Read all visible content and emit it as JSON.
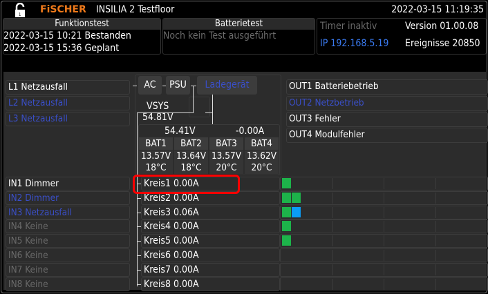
{
  "header": {
    "brand": "FiSCHER",
    "title": "INSILIA 2 Testfloor",
    "datetime": "2022-03-15 11:19:35",
    "lock_icon": "unlocked-padlock-icon",
    "brand_color": "#f07a1a"
  },
  "funktionstest": {
    "title": "Funktionstest",
    "lines": [
      "2022-03-15 10:21 Bestanden",
      "2022-03-15 15:36 Geplant"
    ]
  },
  "batterietest": {
    "title": "Batterietest",
    "status": "Noch kein Test ausgeführt"
  },
  "info": {
    "timer": "Timer inaktiv",
    "version": "Version 01.00.08",
    "ip": "IP 192.168.5.19",
    "events": "Ereignisse 20850"
  },
  "phases": [
    {
      "label": "L1 Netzausfall",
      "state": "white"
    },
    {
      "label": "L2 Netzausfall",
      "state": "blue"
    },
    {
      "label": "L3 Netzausfall",
      "state": "blue"
    }
  ],
  "power": {
    "ac": "AC",
    "psu": "PSU",
    "charger": "Ladegerät",
    "vsys_label": "VSYS",
    "vsys": "54.81V",
    "bat_voltage": "54.41V",
    "bat_current": "-0.00A",
    "batteries": [
      {
        "name": "BAT1",
        "voltage": "13.57V",
        "temp": "18°C"
      },
      {
        "name": "BAT2",
        "voltage": "13.64V",
        "temp": "18°C"
      },
      {
        "name": "BAT3",
        "voltage": "13.57V",
        "temp": "20°C"
      },
      {
        "name": "BAT4",
        "voltage": "13.62V",
        "temp": "20°C"
      }
    ]
  },
  "outputs": [
    {
      "label": "OUT1 Batteriebetrieb",
      "state": "white"
    },
    {
      "label": "OUT2 Netzbetrieb",
      "state": "blue"
    },
    {
      "label": "OUT3 Fehler",
      "state": "white"
    },
    {
      "label": "OUT4 Modulfehler",
      "state": "white"
    }
  ],
  "inputs": [
    {
      "label": "IN1 Dimmer",
      "state": "white"
    },
    {
      "label": "IN2 Dimmer",
      "state": "blue"
    },
    {
      "label": "IN3 Netzausfall",
      "state": "blue"
    },
    {
      "label": "IN4 Keine",
      "state": "gray"
    },
    {
      "label": "IN5 Keine",
      "state": "gray"
    },
    {
      "label": "IN6 Keine",
      "state": "gray"
    },
    {
      "label": "IN7 Keine",
      "state": "gray"
    },
    {
      "label": "IN8 Keine",
      "state": "gray"
    }
  ],
  "circuits": [
    {
      "label": "Kreis1 0.00A",
      "status": [
        "green"
      ],
      "selected": true
    },
    {
      "label": "Kreis2 0.00A",
      "status": [
        "green",
        "green"
      ]
    },
    {
      "label": "Kreis3 0.06A",
      "status": [
        "green",
        "blue"
      ]
    },
    {
      "label": "Kreis4 0.00A",
      "status": [
        "green"
      ]
    },
    {
      "label": "Kreis5 0.00A",
      "status": [
        "green"
      ]
    },
    {
      "label": "Kreis6 0.00A",
      "status": []
    },
    {
      "label": "Kreis7 0.00A",
      "status": []
    },
    {
      "label": "Kreis8 0.00A",
      "status": []
    }
  ],
  "colors": {
    "green": "#1db34a",
    "blue": "#0a9cf5",
    "highlight": "#ff0000"
  }
}
